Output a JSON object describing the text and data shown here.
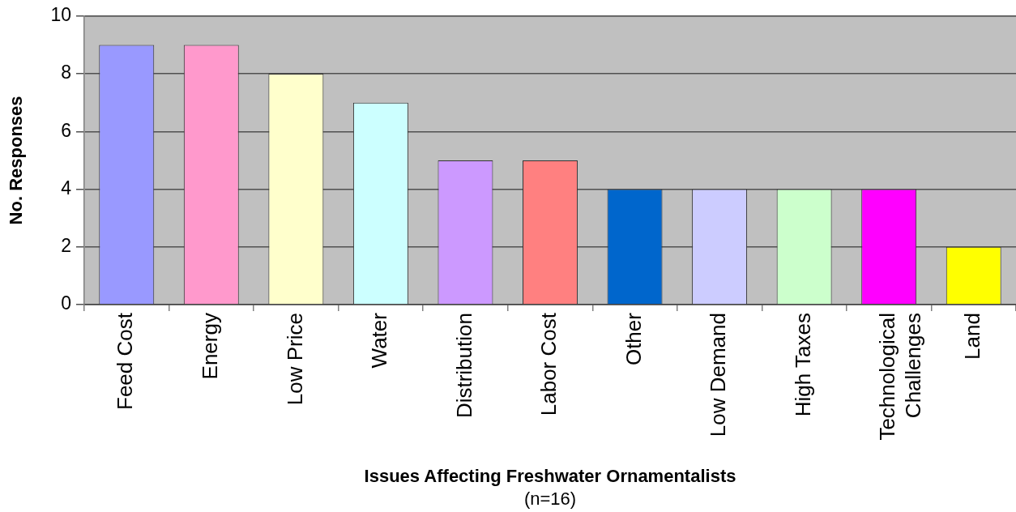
{
  "chart_data": {
    "type": "bar",
    "xlabel": "Issues Affecting Freshwater Ornamentalists",
    "ylabel": "No. Responses",
    "annotations": [
      "(n=16)"
    ],
    "categories": [
      "Feed Cost",
      "Energy",
      "Low Price",
      "Water",
      "Distribution",
      "Labor Cost",
      "Other",
      "Low Demand",
      "High Taxes",
      "Technological Challenges",
      "Land"
    ],
    "values": [
      9,
      9,
      8,
      7,
      5,
      5,
      4,
      4,
      4,
      4,
      2
    ],
    "colors": [
      "#9999ff",
      "#ff99cc",
      "#ffffcc",
      "#ccffff",
      "#cc99ff",
      "#ff8080",
      "#0066cc",
      "#ccccff",
      "#ccffcc",
      "#ff00ff",
      "#ffff00"
    ],
    "ylim": [
      0,
      10
    ],
    "yticks": [
      0,
      2,
      4,
      6,
      8,
      10
    ],
    "grid": "y"
  }
}
